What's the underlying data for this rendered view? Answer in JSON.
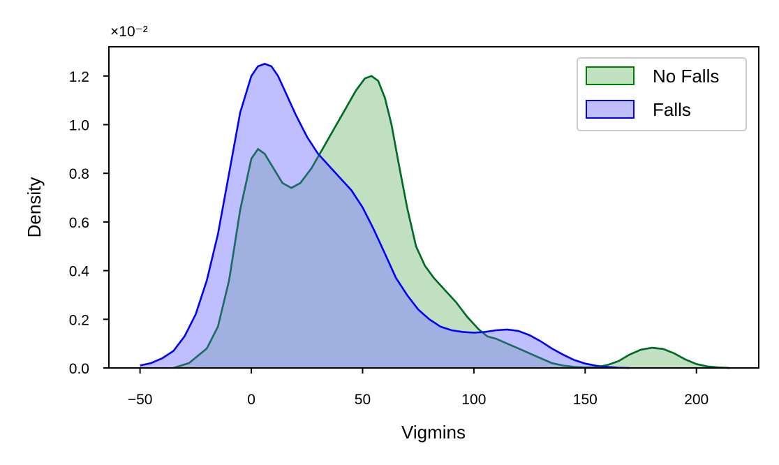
{
  "chart_data": {
    "type": "area",
    "xlabel": "Vigmins",
    "ylabel": "Density",
    "offset_label": "×10⁻²",
    "xlim": [
      -64,
      228
    ],
    "ylim": [
      0,
      1.32
    ],
    "xticks": [
      -50,
      0,
      50,
      100,
      150,
      200
    ],
    "xtick_labels": [
      "−50",
      "0",
      "50",
      "100",
      "150",
      "200"
    ],
    "yticks": [
      0.0,
      0.2,
      0.4,
      0.6,
      0.8,
      1.0,
      1.2
    ],
    "ytick_labels": [
      "0.0",
      "0.2",
      "0.4",
      "0.6",
      "0.8",
      "1.0",
      "1.2"
    ],
    "legend_position": "top-right",
    "grid": false,
    "series": [
      {
        "name": "No Falls",
        "color": "#008000",
        "fill": "#c1e0c0",
        "x": [
          -35,
          -28,
          -20,
          -15,
          -10,
          -5,
          0,
          3,
          6,
          10,
          14,
          18,
          22,
          27,
          32,
          37,
          42,
          47,
          51,
          54,
          57,
          60,
          63,
          66,
          70,
          74,
          78,
          82,
          87,
          92,
          97,
          102,
          106,
          110,
          115,
          120,
          125,
          130,
          135,
          140,
          145,
          150,
          155,
          160,
          165,
          170,
          175,
          180,
          185,
          190,
          195,
          200,
          205,
          210,
          215
        ],
        "y": [
          0.0,
          0.02,
          0.08,
          0.17,
          0.36,
          0.65,
          0.86,
          0.9,
          0.88,
          0.82,
          0.76,
          0.74,
          0.76,
          0.82,
          0.9,
          0.98,
          1.06,
          1.14,
          1.19,
          1.2,
          1.18,
          1.11,
          1.0,
          0.85,
          0.66,
          0.5,
          0.42,
          0.37,
          0.32,
          0.27,
          0.21,
          0.16,
          0.13,
          0.12,
          0.1,
          0.08,
          0.06,
          0.04,
          0.02,
          0.01,
          0.004,
          0.002,
          0.003,
          0.012,
          0.028,
          0.055,
          0.075,
          0.083,
          0.078,
          0.06,
          0.035,
          0.016,
          0.006,
          0.002,
          0.0
        ]
      },
      {
        "name": "Falls",
        "color": "#0000ff",
        "fill": "#7f7fff",
        "x": [
          -50,
          -45,
          -40,
          -35,
          -30,
          -25,
          -20,
          -15,
          -10,
          -5,
          0,
          3,
          6,
          9,
          12,
          15,
          20,
          25,
          30,
          35,
          40,
          45,
          50,
          55,
          60,
          65,
          70,
          75,
          80,
          85,
          90,
          95,
          100,
          105,
          110,
          115,
          120,
          125,
          130,
          135,
          140,
          145,
          150,
          155,
          160,
          165,
          170
        ],
        "y": [
          0.01,
          0.02,
          0.04,
          0.07,
          0.13,
          0.22,
          0.36,
          0.55,
          0.8,
          1.05,
          1.2,
          1.24,
          1.25,
          1.24,
          1.2,
          1.14,
          1.04,
          0.95,
          0.88,
          0.83,
          0.78,
          0.73,
          0.66,
          0.57,
          0.47,
          0.37,
          0.3,
          0.24,
          0.2,
          0.17,
          0.155,
          0.148,
          0.145,
          0.148,
          0.155,
          0.158,
          0.152,
          0.135,
          0.11,
          0.08,
          0.055,
          0.033,
          0.018,
          0.009,
          0.004,
          0.001,
          0.0
        ]
      }
    ]
  }
}
